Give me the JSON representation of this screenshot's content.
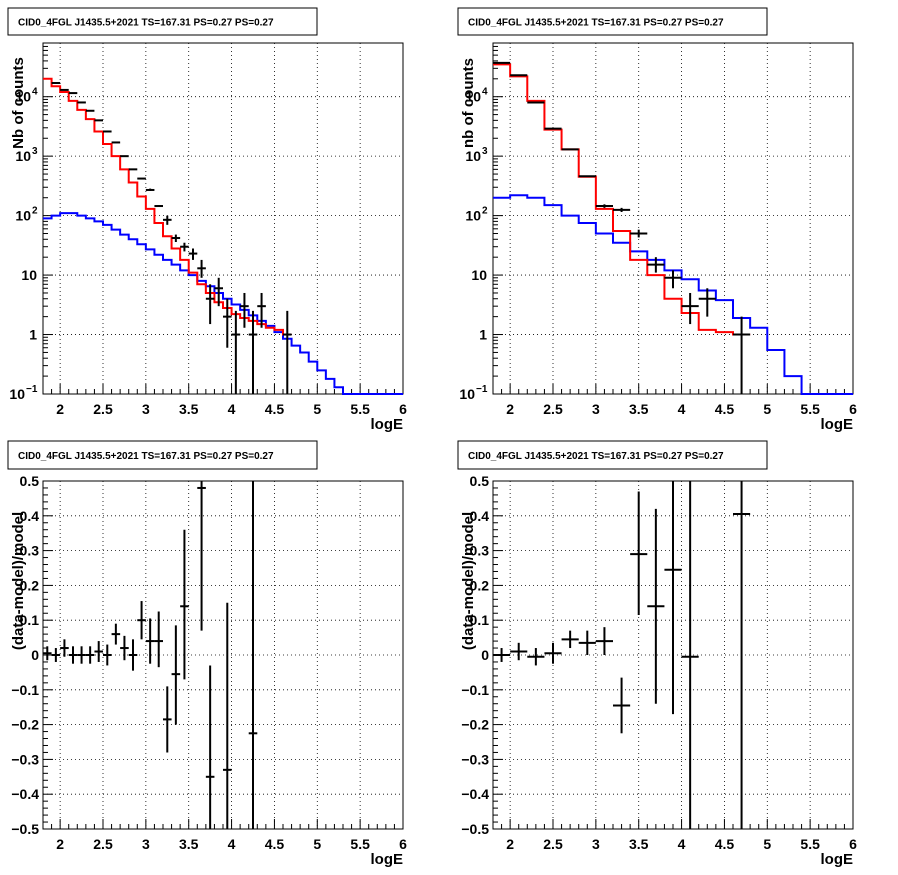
{
  "panels": [
    {
      "title": "CID0_4FGL J1435.5+2021 TS=167.31 PS=0.27 PS=0.27",
      "xlabel": "logE",
      "ylabel": "Nb of counts",
      "xticklabels": [
        "2",
        "2.5",
        "3",
        "3.5",
        "4",
        "4.5",
        "5",
        "5.5",
        "6"
      ]
    },
    {
      "title": "CID0_4FGL J1435.5+2021 TS=167.31 PS=0.27 PS=0.27",
      "xlabel": "logE",
      "ylabel": "nb of counts",
      "xticklabels": [
        "2",
        "2.5",
        "3",
        "3.5",
        "4",
        "4.5",
        "5",
        "5.5",
        "6"
      ]
    },
    {
      "title": "CID0_4FGL J1435.5+2021 TS=167.31 PS=0.27 PS=0.27",
      "xlabel": "logE",
      "ylabel": "(data-model)/model",
      "xticklabels": [
        "2",
        "2.5",
        "3",
        "3.5",
        "4",
        "4.5",
        "5",
        "5.5",
        "6"
      ],
      "yticklabels": [
        "−0.5",
        "−0.4",
        "−0.3",
        "−0.2",
        "−0.1",
        "0",
        "0.1",
        "0.2",
        "0.3",
        "0.4",
        "0.5"
      ]
    },
    {
      "title": "CID0_4FGL J1435.5+2021 TS=167.31 PS=0.27 PS=0.27",
      "xlabel": "logE",
      "ylabel": "(data-model)/model",
      "xticklabels": [
        "2",
        "2.5",
        "3",
        "3.5",
        "4",
        "4.5",
        "5",
        "5.5",
        "6"
      ],
      "yticklabels": [
        "−0.5",
        "−0.4",
        "−0.3",
        "−0.2",
        "−0.1",
        "0",
        "0.1",
        "0.2",
        "0.3",
        "0.4",
        "0.5"
      ]
    }
  ],
  "log_ticklabels": {
    "e1": {
      "base": "10",
      "exp": "−1"
    },
    "p1": "1",
    "p2": "10",
    "e3": {
      "base": "10",
      "exp": "2"
    },
    "e4": {
      "base": "10",
      "exp": "3"
    },
    "e5": {
      "base": "10",
      "exp": "4"
    }
  },
  "colors": {
    "data": "#000000",
    "total_model": "#ff0000",
    "source_model": "#0000ff",
    "grid": "#000000"
  },
  "chart_data": [
    {
      "type": "histogram",
      "scale": "log",
      "xlim": [
        1.8,
        6.0
      ],
      "ylim": [
        0.1,
        80000
      ],
      "grid": true,
      "total_model_edges": [
        1.8,
        1.9,
        2.0,
        2.1,
        2.2,
        2.3,
        2.4,
        2.5,
        2.6,
        2.7,
        2.8,
        2.9,
        3.0,
        3.1,
        3.2,
        3.3,
        3.4,
        3.5,
        3.6,
        3.7,
        3.8,
        3.9,
        4.0,
        4.1,
        4.2,
        4.3,
        4.4,
        4.5,
        4.6,
        4.7
      ],
      "total_model": [
        20000,
        15000,
        12000,
        8500,
        6000,
        4200,
        2600,
        1600,
        1000,
        600,
        360,
        210,
        130,
        75,
        45,
        28,
        18,
        11,
        7,
        5,
        3.5,
        2.8,
        2.2,
        1.9,
        1.7,
        1.5,
        1.3,
        1.2,
        1.0
      ],
      "source_model_edges": [
        1.8,
        1.9,
        2.0,
        2.1,
        2.2,
        2.3,
        2.4,
        2.5,
        2.6,
        2.7,
        2.8,
        2.9,
        3.0,
        3.1,
        3.2,
        3.3,
        3.4,
        3.5,
        3.6,
        3.7,
        3.8,
        3.9,
        4.0,
        4.1,
        4.2,
        4.3,
        4.4,
        4.5,
        4.6,
        4.7,
        4.8,
        4.9,
        5.0,
        5.1,
        5.2,
        5.3,
        5.4,
        5.5,
        5.6,
        5.7,
        5.8,
        5.9,
        6.0
      ],
      "source_model": [
        90,
        100,
        110,
        110,
        100,
        90,
        80,
        70,
        58,
        48,
        40,
        33,
        27,
        22,
        18,
        15,
        12,
        10,
        8,
        6.5,
        5,
        4,
        3.2,
        2.6,
        2.1,
        1.7,
        1.4,
        1.1,
        0.85,
        0.65,
        0.5,
        0.35,
        0.25,
        0.18,
        0.13,
        0.1,
        0.1,
        0.1,
        0.1,
        0.1,
        0.1,
        0.1
      ],
      "data": [
        {
          "x": 1.95,
          "y": 17000,
          "xerr": 0.05,
          "ylo": 17000,
          "yhi": 17000
        },
        {
          "x": 2.05,
          "y": 13000,
          "xerr": 0.05,
          "ylo": 13000,
          "yhi": 13000
        },
        {
          "x": 2.15,
          "y": 11500,
          "xerr": 0.05,
          "ylo": 11500,
          "yhi": 11500
        },
        {
          "x": 2.25,
          "y": 8000,
          "xerr": 0.05,
          "ylo": 8000,
          "yhi": 8000
        },
        {
          "x": 2.35,
          "y": 5800,
          "xerr": 0.05,
          "ylo": 5800,
          "yhi": 5800
        },
        {
          "x": 2.45,
          "y": 4000,
          "xerr": 0.05,
          "ylo": 4000,
          "yhi": 4000
        },
        {
          "x": 2.55,
          "y": 2600,
          "xerr": 0.05,
          "ylo": 2600,
          "yhi": 2600
        },
        {
          "x": 2.65,
          "y": 1700,
          "xerr": 0.05,
          "ylo": 1700,
          "yhi": 1700
        },
        {
          "x": 2.75,
          "y": 1000,
          "xerr": 0.05,
          "ylo": 1000,
          "yhi": 1000
        },
        {
          "x": 2.85,
          "y": 600,
          "xerr": 0.05,
          "ylo": 600,
          "yhi": 600
        },
        {
          "x": 2.95,
          "y": 420,
          "xerr": 0.05,
          "ylo": 420,
          "yhi": 420
        },
        {
          "x": 3.05,
          "y": 270,
          "xerr": 0.05,
          "ylo": 260,
          "yhi": 285
        },
        {
          "x": 3.15,
          "y": 145,
          "xerr": 0.05,
          "ylo": 140,
          "yhi": 150
        },
        {
          "x": 3.25,
          "y": 85,
          "xerr": 0.05,
          "ylo": 70,
          "yhi": 100
        },
        {
          "x": 3.35,
          "y": 42,
          "xerr": 0.05,
          "ylo": 36,
          "yhi": 48
        },
        {
          "x": 3.45,
          "y": 30,
          "xerr": 0.05,
          "ylo": 25,
          "yhi": 35
        },
        {
          "x": 3.55,
          "y": 23,
          "xerr": 0.05,
          "ylo": 18,
          "yhi": 28
        },
        {
          "x": 3.65,
          "y": 13,
          "xerr": 0.05,
          "ylo": 9,
          "yhi": 18
        },
        {
          "x": 3.75,
          "y": 4,
          "xerr": 0.05,
          "ylo": 1.5,
          "yhi": 7
        },
        {
          "x": 3.85,
          "y": 6,
          "xerr": 0.05,
          "ylo": 3,
          "yhi": 9
        },
        {
          "x": 3.95,
          "y": 2,
          "xerr": 0.05,
          "ylo": 0.6,
          "yhi": 4
        },
        {
          "x": 4.05,
          "y": 1,
          "xerr": 0.05,
          "ylo": 0.1,
          "yhi": 2.5
        },
        {
          "x": 4.15,
          "y": 3,
          "xerr": 0.05,
          "ylo": 1.3,
          "yhi": 5
        },
        {
          "x": 4.25,
          "y": 1,
          "xerr": 0.05,
          "ylo": 0.1,
          "yhi": 2.5
        },
        {
          "x": 4.35,
          "y": 3,
          "xerr": 0.05,
          "ylo": 1.3,
          "yhi": 5
        },
        {
          "x": 4.65,
          "y": 1,
          "xerr": 0.05,
          "ylo": 0.1,
          "yhi": 2.5
        }
      ]
    },
    {
      "type": "histogram",
      "scale": "log",
      "xlim": [
        1.8,
        6.0
      ],
      "ylim": [
        0.1,
        80000
      ],
      "grid": true,
      "total_model_edges": [
        1.8,
        2.0,
        2.2,
        2.4,
        2.6,
        2.8,
        3.0,
        3.2,
        3.4,
        3.6,
        3.8,
        4.0,
        4.2,
        4.4,
        4.6,
        4.8
      ],
      "total_model": [
        35000,
        22000,
        8500,
        2800,
        1300,
        450,
        130,
        55,
        18,
        10,
        4,
        2.3,
        1.2,
        1.1,
        1.0
      ],
      "source_model_edges": [
        1.8,
        2.0,
        2.2,
        2.4,
        2.6,
        2.8,
        3.0,
        3.2,
        3.4,
        3.6,
        3.8,
        4.0,
        4.2,
        4.4,
        4.6,
        4.8,
        5.0,
        5.2,
        5.4,
        5.6,
        5.8,
        6.0
      ],
      "source_model": [
        200,
        220,
        200,
        150,
        100,
        75,
        50,
        35,
        25,
        18,
        12,
        8.5,
        5.5,
        3.8,
        1.9,
        1.3,
        0.55,
        0.2,
        0.1,
        0.1,
        0.1
      ],
      "data": [
        {
          "x": 1.9,
          "y": 37000,
          "xerr": 0.1,
          "ylo": 37000,
          "yhi": 37000
        },
        {
          "x": 2.1,
          "y": 23000,
          "xerr": 0.1,
          "ylo": 23000,
          "yhi": 23000
        },
        {
          "x": 2.3,
          "y": 8000,
          "xerr": 0.1,
          "ylo": 8000,
          "yhi": 8000
        },
        {
          "x": 2.5,
          "y": 2900,
          "xerr": 0.1,
          "ylo": 2900,
          "yhi": 2900
        },
        {
          "x": 2.7,
          "y": 1300,
          "xerr": 0.1,
          "ylo": 1300,
          "yhi": 1300
        },
        {
          "x": 2.9,
          "y": 460,
          "xerr": 0.1,
          "ylo": 460,
          "yhi": 460
        },
        {
          "x": 3.1,
          "y": 145,
          "xerr": 0.1,
          "ylo": 135,
          "yhi": 155
        },
        {
          "x": 3.3,
          "y": 125,
          "xerr": 0.1,
          "ylo": 115,
          "yhi": 135
        },
        {
          "x": 3.5,
          "y": 50,
          "xerr": 0.1,
          "ylo": 43,
          "yhi": 58
        },
        {
          "x": 3.7,
          "y": 15,
          "xerr": 0.1,
          "ylo": 11,
          "yhi": 20
        },
        {
          "x": 3.9,
          "y": 9,
          "xerr": 0.1,
          "ylo": 6,
          "yhi": 12
        },
        {
          "x": 4.1,
          "y": 3,
          "xerr": 0.1,
          "ylo": 1.5,
          "yhi": 5
        },
        {
          "x": 4.3,
          "y": 4,
          "xerr": 0.1,
          "ylo": 2,
          "yhi": 6
        },
        {
          "x": 4.7,
          "y": 1,
          "xerr": 0.1,
          "ylo": 0.1,
          "yhi": 2
        }
      ]
    },
    {
      "type": "scatter_errorbars",
      "xlim": [
        1.8,
        6.0
      ],
      "ylim": [
        -0.5,
        0.5
      ],
      "grid": true,
      "data": [
        {
          "x": 1.85,
          "y": 0.005,
          "xerr": 0.05,
          "ylo": -0.015,
          "yhi": 0.025
        },
        {
          "x": 1.95,
          "y": 0.0,
          "xerr": 0.05,
          "ylo": -0.02,
          "yhi": 0.02
        },
        {
          "x": 2.05,
          "y": 0.02,
          "xerr": 0.05,
          "ylo": -0.005,
          "yhi": 0.045
        },
        {
          "x": 2.15,
          "y": 0.0,
          "xerr": 0.05,
          "ylo": -0.025,
          "yhi": 0.025
        },
        {
          "x": 2.25,
          "y": 0.0,
          "xerr": 0.05,
          "ylo": -0.025,
          "yhi": 0.025
        },
        {
          "x": 2.35,
          "y": 0.0,
          "xerr": 0.05,
          "ylo": -0.025,
          "yhi": 0.025
        },
        {
          "x": 2.45,
          "y": 0.01,
          "xerr": 0.05,
          "ylo": -0.02,
          "yhi": 0.04
        },
        {
          "x": 2.55,
          "y": 0.0,
          "xerr": 0.05,
          "ylo": -0.03,
          "yhi": 0.03
        },
        {
          "x": 2.65,
          "y": 0.06,
          "xerr": 0.05,
          "ylo": 0.03,
          "yhi": 0.09
        },
        {
          "x": 2.75,
          "y": 0.02,
          "xerr": 0.05,
          "ylo": -0.015,
          "yhi": 0.055
        },
        {
          "x": 2.85,
          "y": 0.0,
          "xerr": 0.05,
          "ylo": -0.045,
          "yhi": 0.045
        },
        {
          "x": 2.95,
          "y": 0.1,
          "xerr": 0.05,
          "ylo": 0.045,
          "yhi": 0.155
        },
        {
          "x": 3.05,
          "y": 0.04,
          "xerr": 0.05,
          "ylo": -0.025,
          "yhi": 0.105
        },
        {
          "x": 3.15,
          "y": 0.04,
          "xerr": 0.05,
          "ylo": -0.035,
          "yhi": 0.125
        },
        {
          "x": 3.25,
          "y": -0.185,
          "xerr": 0.05,
          "ylo": -0.28,
          "yhi": -0.09
        },
        {
          "x": 3.35,
          "y": -0.055,
          "xerr": 0.05,
          "ylo": -0.2,
          "yhi": 0.085
        },
        {
          "x": 3.45,
          "y": 0.14,
          "xerr": 0.05,
          "ylo": -0.07,
          "yhi": 0.36
        },
        {
          "x": 3.65,
          "y": 0.48,
          "xerr": 0.05,
          "ylo": 0.07,
          "yhi": 0.5
        },
        {
          "x": 3.75,
          "y": -0.35,
          "xerr": 0.05,
          "ylo": -0.5,
          "yhi": -0.03
        },
        {
          "x": 3.95,
          "y": -0.33,
          "xerr": 0.05,
          "ylo": -0.5,
          "yhi": 0.15
        },
        {
          "x": 4.25,
          "y": -0.225,
          "xerr": 0.05,
          "ylo": -0.5,
          "yhi": 0.5
        }
      ]
    },
    {
      "type": "scatter_errorbars",
      "xlim": [
        1.8,
        6.0
      ],
      "ylim": [
        -0.5,
        0.5
      ],
      "grid": true,
      "data": [
        {
          "x": 1.9,
          "y": 0.0,
          "xerr": 0.1,
          "ylo": -0.02,
          "yhi": 0.02
        },
        {
          "x": 2.1,
          "y": 0.01,
          "xerr": 0.1,
          "ylo": -0.015,
          "yhi": 0.035
        },
        {
          "x": 2.3,
          "y": -0.005,
          "xerr": 0.1,
          "ylo": -0.03,
          "yhi": 0.02
        },
        {
          "x": 2.5,
          "y": 0.005,
          "xerr": 0.1,
          "ylo": -0.025,
          "yhi": 0.035
        },
        {
          "x": 2.7,
          "y": 0.045,
          "xerr": 0.1,
          "ylo": 0.02,
          "yhi": 0.07
        },
        {
          "x": 2.9,
          "y": 0.035,
          "xerr": 0.1,
          "ylo": 0.0,
          "yhi": 0.07
        },
        {
          "x": 3.1,
          "y": 0.04,
          "xerr": 0.1,
          "ylo": 0.0,
          "yhi": 0.08
        },
        {
          "x": 3.3,
          "y": -0.145,
          "xerr": 0.1,
          "ylo": -0.225,
          "yhi": -0.065
        },
        {
          "x": 3.5,
          "y": 0.29,
          "xerr": 0.1,
          "ylo": 0.115,
          "yhi": 0.47
        },
        {
          "x": 3.7,
          "y": 0.14,
          "xerr": 0.1,
          "ylo": -0.14,
          "yhi": 0.42
        },
        {
          "x": 3.9,
          "y": 0.245,
          "xerr": 0.1,
          "ylo": -0.17,
          "yhi": 0.5
        },
        {
          "x": 4.1,
          "y": -0.005,
          "xerr": 0.1,
          "ylo": -0.5,
          "yhi": 0.5
        },
        {
          "x": 4.7,
          "y": 0.405,
          "xerr": 0.1,
          "ylo": -0.5,
          "yhi": 0.5
        }
      ]
    }
  ]
}
